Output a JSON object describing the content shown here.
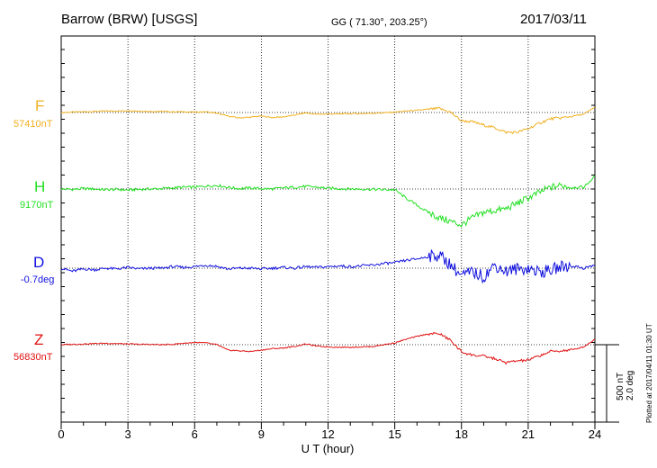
{
  "header": {
    "station": "Barrow (BRW)  [USGS]",
    "coords": "GG ( 71.30°, 203.25°)",
    "date": "2017/03/11"
  },
  "scale_bar": {
    "primary": "500 nT",
    "secondary": "2.0 deg"
  },
  "footer_note": "Plotted at 2017/04/11 01:30 UT",
  "chart_data": {
    "type": "line",
    "xlabel": "U T (hour)",
    "xlim": [
      0,
      24
    ],
    "xticks": [
      "0",
      "3",
      "6",
      "9",
      "12",
      "15",
      "18",
      "21",
      "24"
    ],
    "grid": true,
    "x": [
      0,
      0.5,
      1,
      1.5,
      2,
      2.5,
      3,
      3.5,
      4,
      4.5,
      5,
      5.5,
      6,
      6.5,
      7,
      7.5,
      8,
      8.5,
      9,
      9.5,
      10,
      10.5,
      11,
      11.5,
      12,
      12.5,
      13,
      13.5,
      14,
      14.5,
      15,
      15.5,
      16,
      16.5,
      17,
      17.5,
      18,
      18.5,
      19,
      19.5,
      20,
      20.5,
      21,
      21.5,
      22,
      22.5,
      23,
      23.5,
      24
    ],
    "series": [
      {
        "name": "F",
        "baseline": "57410nT",
        "color": "#f0b020",
        "values": [
          57410,
          57412,
          57414,
          57416,
          57418,
          57418,
          57420,
          57418,
          57416,
          57416,
          57414,
          57414,
          57412,
          57414,
          57406,
          57390,
          57380,
          57384,
          57390,
          57382,
          57386,
          57396,
          57408,
          57400,
          57402,
          57402,
          57404,
          57404,
          57406,
          57408,
          57412,
          57418,
          57422,
          57428,
          57432,
          57412,
          57364,
          57358,
          57340,
          57325,
          57300,
          57300,
          57320,
          57350,
          57375,
          57380,
          57390,
          57400,
          57440
        ]
      },
      {
        "name": "H",
        "baseline": "9170nT",
        "color": "#22e022",
        "values": [
          9170,
          9168,
          9172,
          9170,
          9166,
          9168,
          9164,
          9168,
          9170,
          9172,
          9176,
          9180,
          9180,
          9186,
          9190,
          9180,
          9172,
          9176,
          9172,
          9170,
          9176,
          9180,
          9184,
          9180,
          9174,
          9172,
          9170,
          9170,
          9168,
          9166,
          9166,
          9120,
          9080,
          9040,
          9010,
          8990,
          8970,
          9010,
          9040,
          9050,
          9060,
          9090,
          9120,
          9150,
          9180,
          9190,
          9180,
          9180,
          9240
        ]
      },
      {
        "name": "D",
        "baseline": "-0.7deg",
        "color": "#1010e0",
        "values": [
          -0.7,
          -0.78,
          -0.72,
          -0.74,
          -0.7,
          -0.72,
          -0.68,
          -0.72,
          -0.7,
          -0.7,
          -0.66,
          -0.68,
          -0.66,
          -0.62,
          -0.65,
          -0.72,
          -0.7,
          -0.7,
          -0.72,
          -0.7,
          -0.68,
          -0.7,
          -0.66,
          -0.68,
          -0.66,
          -0.64,
          -0.66,
          -0.64,
          -0.62,
          -0.58,
          -0.56,
          -0.5,
          -0.46,
          -0.4,
          -0.36,
          -0.6,
          -0.9,
          -0.8,
          -0.92,
          -0.62,
          -0.78,
          -0.72,
          -0.7,
          -0.8,
          -0.76,
          -0.66,
          -0.64,
          -0.7,
          -0.62
        ]
      },
      {
        "name": "Z",
        "baseline": "56830nT",
        "color": "#e01010",
        "values": [
          56830,
          56832,
          56834,
          56836,
          56838,
          56836,
          56834,
          56832,
          56832,
          56830,
          56832,
          56838,
          56842,
          56840,
          56830,
          56800,
          56796,
          56792,
          56800,
          56808,
          56812,
          56820,
          56834,
          56822,
          56818,
          56816,
          56816,
          56818,
          56820,
          56830,
          56840,
          56860,
          56876,
          56890,
          56892,
          56855,
          56790,
          56772,
          56766,
          56752,
          56730,
          56740,
          56744,
          56768,
          56792,
          56796,
          56802,
          56818,
          56860
        ]
      }
    ]
  }
}
